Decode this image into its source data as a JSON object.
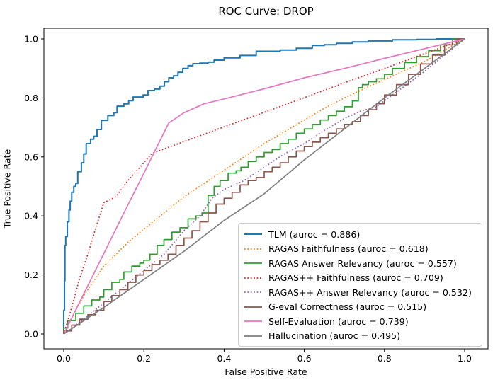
{
  "chart_data": {
    "type": "line",
    "title": "ROC Curve: DROP",
    "xlabel": "False Positive Rate",
    "ylabel": "True Positive Rate",
    "xlim": [
      0.0,
      1.0
    ],
    "ylim": [
      0.0,
      1.0
    ],
    "xticks": [
      "0.0",
      "0.2",
      "0.4",
      "0.6",
      "0.8",
      "1.0"
    ],
    "yticks": [
      "0.0",
      "0.2",
      "0.4",
      "0.6",
      "0.8",
      "1.0"
    ],
    "grid": false,
    "legend_position": "lower right",
    "legend": {
      "border_color": "#cccccc",
      "background": "#ffffff"
    },
    "axis_color": "#000000",
    "background": "#ffffff",
    "series": [
      {
        "name": "TLM",
        "auroc": 0.886,
        "label": "TLM (auroc = 0.886)",
        "color": "#1f77b4",
        "style": "solid",
        "render": "steps",
        "width": 2.0,
        "points": [
          [
            0,
            0
          ],
          [
            0.002,
            0.08
          ],
          [
            0.003,
            0.18
          ],
          [
            0.005,
            0.3
          ],
          [
            0.009,
            0.33
          ],
          [
            0.013,
            0.38
          ],
          [
            0.016,
            0.42
          ],
          [
            0.02,
            0.45
          ],
          [
            0.025,
            0.48
          ],
          [
            0.03,
            0.5
          ],
          [
            0.035,
            0.51
          ],
          [
            0.044,
            0.55
          ],
          [
            0.05,
            0.58
          ],
          [
            0.056,
            0.61
          ],
          [
            0.067,
            0.645
          ],
          [
            0.075,
            0.66
          ],
          [
            0.083,
            0.67
          ],
          [
            0.094,
            0.693
          ],
          [
            0.11,
            0.724
          ],
          [
            0.125,
            0.74
          ],
          [
            0.133,
            0.75
          ],
          [
            0.15,
            0.772
          ],
          [
            0.162,
            0.78
          ],
          [
            0.173,
            0.791
          ],
          [
            0.198,
            0.803
          ],
          [
            0.21,
            0.81
          ],
          [
            0.226,
            0.825
          ],
          [
            0.24,
            0.83
          ],
          [
            0.251,
            0.84
          ],
          [
            0.262,
            0.855
          ],
          [
            0.274,
            0.868
          ],
          [
            0.285,
            0.875
          ],
          [
            0.297,
            0.887
          ],
          [
            0.31,
            0.9
          ],
          [
            0.322,
            0.909
          ],
          [
            0.339,
            0.916
          ],
          [
            0.36,
            0.918
          ],
          [
            0.375,
            0.921
          ],
          [
            0.4,
            0.928
          ],
          [
            0.44,
            0.936
          ],
          [
            0.48,
            0.944
          ],
          [
            0.54,
            0.958
          ],
          [
            0.58,
            0.962
          ],
          [
            0.62,
            0.968
          ],
          [
            0.65,
            0.978
          ],
          [
            0.68,
            0.98
          ],
          [
            0.72,
            0.985
          ],
          [
            0.76,
            0.99
          ],
          [
            0.82,
            0.993
          ],
          [
            0.88,
            0.997
          ],
          [
            0.93,
            0.998
          ],
          [
            1,
            1
          ]
        ]
      },
      {
        "name": "RAGAS Faithfulness",
        "auroc": 0.618,
        "label": "RAGAS Faithfulness (auroc = 0.618)",
        "color": "#ff7f0e",
        "style": "dotted",
        "render": "linear",
        "width": 1.7,
        "points": [
          [
            0,
            0
          ],
          [
            0.01,
            0.03
          ],
          [
            0.03,
            0.08
          ],
          [
            0.05,
            0.13
          ],
          [
            0.07,
            0.17
          ],
          [
            0.1,
            0.23
          ],
          [
            0.13,
            0.27
          ],
          [
            0.16,
            0.31
          ],
          [
            0.2,
            0.355
          ],
          [
            0.25,
            0.41
          ],
          [
            0.3,
            0.465
          ],
          [
            0.35,
            0.51
          ],
          [
            0.4,
            0.555
          ],
          [
            0.45,
            0.6
          ],
          [
            0.5,
            0.645
          ],
          [
            0.55,
            0.685
          ],
          [
            0.6,
            0.725
          ],
          [
            0.65,
            0.765
          ],
          [
            0.7,
            0.8
          ],
          [
            0.75,
            0.832
          ],
          [
            0.8,
            0.862
          ],
          [
            0.85,
            0.893
          ],
          [
            0.9,
            0.923
          ],
          [
            0.95,
            0.962
          ],
          [
            1,
            1
          ]
        ]
      },
      {
        "name": "RAGAS Answer Relevancy",
        "auroc": 0.557,
        "label": "RAGAS Answer Relevancy (auroc = 0.557)",
        "color": "#2ca02c",
        "style": "solid",
        "render": "steps",
        "width": 1.7,
        "points": [
          [
            0,
            0
          ],
          [
            0.01,
            0.02
          ],
          [
            0.03,
            0.045
          ],
          [
            0.05,
            0.07
          ],
          [
            0.07,
            0.095
          ],
          [
            0.09,
            0.115
          ],
          [
            0.1,
            0.125
          ],
          [
            0.12,
            0.15
          ],
          [
            0.14,
            0.175
          ],
          [
            0.15,
            0.185
          ],
          [
            0.17,
            0.21
          ],
          [
            0.19,
            0.23
          ],
          [
            0.2,
            0.24
          ],
          [
            0.215,
            0.25
          ],
          [
            0.233,
            0.27
          ],
          [
            0.25,
            0.3
          ],
          [
            0.27,
            0.32
          ],
          [
            0.29,
            0.345
          ],
          [
            0.31,
            0.36
          ],
          [
            0.33,
            0.39
          ],
          [
            0.345,
            0.4
          ],
          [
            0.36,
            0.41
          ],
          [
            0.375,
            0.47
          ],
          [
            0.39,
            0.5
          ],
          [
            0.41,
            0.52
          ],
          [
            0.43,
            0.545
          ],
          [
            0.442,
            0.553
          ],
          [
            0.46,
            0.565
          ],
          [
            0.48,
            0.585
          ],
          [
            0.5,
            0.6
          ],
          [
            0.52,
            0.615
          ],
          [
            0.54,
            0.625
          ],
          [
            0.56,
            0.645
          ],
          [
            0.58,
            0.66
          ],
          [
            0.6,
            0.68
          ],
          [
            0.62,
            0.695
          ],
          [
            0.64,
            0.71
          ],
          [
            0.66,
            0.725
          ],
          [
            0.68,
            0.74
          ],
          [
            0.7,
            0.755
          ],
          [
            0.72,
            0.77
          ],
          [
            0.735,
            0.79
          ],
          [
            0.745,
            0.835
          ],
          [
            0.76,
            0.845
          ],
          [
            0.78,
            0.855
          ],
          [
            0.8,
            0.865
          ],
          [
            0.82,
            0.88
          ],
          [
            0.85,
            0.9
          ],
          [
            0.88,
            0.92
          ],
          [
            0.91,
            0.94
          ],
          [
            0.94,
            0.96
          ],
          [
            0.97,
            0.98
          ],
          [
            1,
            1
          ]
        ]
      },
      {
        "name": "RAGAS++ Faithfulness",
        "auroc": 0.709,
        "label": "RAGAS++ Faithfulness (auroc = 0.709)",
        "color": "#d62728",
        "style": "dotted",
        "render": "linear",
        "width": 1.7,
        "points": [
          [
            0,
            0
          ],
          [
            0.02,
            0.09
          ],
          [
            0.04,
            0.19
          ],
          [
            0.06,
            0.27
          ],
          [
            0.08,
            0.36
          ],
          [
            0.1,
            0.445
          ],
          [
            0.115,
            0.455
          ],
          [
            0.13,
            0.465
          ],
          [
            0.16,
            0.52
          ],
          [
            0.19,
            0.565
          ],
          [
            0.22,
            0.612
          ],
          [
            0.3,
            0.652
          ],
          [
            0.4,
            0.702
          ],
          [
            0.5,
            0.751
          ],
          [
            0.6,
            0.801
          ],
          [
            0.7,
            0.851
          ],
          [
            0.8,
            0.9
          ],
          [
            0.9,
            0.95
          ],
          [
            1,
            1
          ]
        ]
      },
      {
        "name": "RAGAS++ Answer Relevancy",
        "auroc": 0.532,
        "label": "RAGAS++ Answer Relevancy (auroc = 0.532)",
        "color": "#9467bd",
        "style": "dotted",
        "render": "linear",
        "width": 1.7,
        "points": [
          [
            0,
            0
          ],
          [
            0.05,
            0.05
          ],
          [
            0.1,
            0.105
          ],
          [
            0.15,
            0.16
          ],
          [
            0.2,
            0.215
          ],
          [
            0.25,
            0.27
          ],
          [
            0.3,
            0.35
          ],
          [
            0.34,
            0.4
          ],
          [
            0.37,
            0.46
          ],
          [
            0.4,
            0.49
          ],
          [
            0.45,
            0.52
          ],
          [
            0.5,
            0.565
          ],
          [
            0.55,
            0.61
          ],
          [
            0.6,
            0.645
          ],
          [
            0.65,
            0.69
          ],
          [
            0.7,
            0.73
          ],
          [
            0.74,
            0.755
          ],
          [
            0.78,
            0.77
          ],
          [
            0.82,
            0.81
          ],
          [
            0.86,
            0.85
          ],
          [
            0.9,
            0.89
          ],
          [
            0.95,
            0.945
          ],
          [
            1,
            1
          ]
        ]
      },
      {
        "name": "G-eval Correctness",
        "auroc": 0.515,
        "label": "G-eval Correctness (auroc = 0.515)",
        "color": "#8c564b",
        "style": "solid",
        "render": "steps",
        "width": 1.7,
        "points": [
          [
            0,
            0
          ],
          [
            0.02,
            0.01
          ],
          [
            0.04,
            0.03
          ],
          [
            0.06,
            0.05
          ],
          [
            0.08,
            0.065
          ],
          [
            0.1,
            0.08
          ],
          [
            0.12,
            0.11
          ],
          [
            0.14,
            0.13
          ],
          [
            0.16,
            0.15
          ],
          [
            0.18,
            0.175
          ],
          [
            0.2,
            0.2
          ],
          [
            0.22,
            0.215
          ],
          [
            0.24,
            0.235
          ],
          [
            0.26,
            0.25
          ],
          [
            0.28,
            0.27
          ],
          [
            0.3,
            0.3
          ],
          [
            0.32,
            0.325
          ],
          [
            0.34,
            0.35
          ],
          [
            0.36,
            0.38
          ],
          [
            0.38,
            0.41
          ],
          [
            0.4,
            0.44
          ],
          [
            0.42,
            0.46
          ],
          [
            0.44,
            0.48
          ],
          [
            0.46,
            0.505
          ],
          [
            0.48,
            0.52
          ],
          [
            0.5,
            0.53
          ],
          [
            0.52,
            0.55
          ],
          [
            0.54,
            0.565
          ],
          [
            0.56,
            0.58
          ],
          [
            0.58,
            0.6
          ],
          [
            0.6,
            0.62
          ],
          [
            0.62,
            0.635
          ],
          [
            0.64,
            0.65
          ],
          [
            0.66,
            0.665
          ],
          [
            0.68,
            0.68
          ],
          [
            0.7,
            0.695
          ],
          [
            0.72,
            0.71
          ],
          [
            0.74,
            0.72
          ],
          [
            0.76,
            0.74
          ],
          [
            0.78,
            0.76
          ],
          [
            0.8,
            0.78
          ],
          [
            0.83,
            0.81
          ],
          [
            0.86,
            0.845
          ],
          [
            0.89,
            0.88
          ],
          [
            0.92,
            0.915
          ],
          [
            0.95,
            0.945
          ],
          [
            0.98,
            0.98
          ],
          [
            1,
            1
          ]
        ]
      },
      {
        "name": "Self-Evaluation",
        "auroc": 0.739,
        "label": "Self-Evaluation (auroc = 0.739)",
        "color": "#e377c2",
        "style": "solid",
        "render": "linear",
        "width": 1.7,
        "points": [
          [
            0,
            0
          ],
          [
            0.05,
            0.136
          ],
          [
            0.1,
            0.273
          ],
          [
            0.15,
            0.41
          ],
          [
            0.2,
            0.545
          ],
          [
            0.24,
            0.655
          ],
          [
            0.262,
            0.715
          ],
          [
            0.3,
            0.75
          ],
          [
            0.35,
            0.78
          ],
          [
            0.41,
            0.8
          ],
          [
            0.5,
            0.831
          ],
          [
            0.6,
            0.868
          ],
          [
            0.7,
            0.9
          ],
          [
            0.8,
            0.934
          ],
          [
            0.9,
            0.967
          ],
          [
            1,
            1
          ]
        ]
      },
      {
        "name": "Hallucination",
        "auroc": 0.495,
        "label": "Hallucination (auroc = 0.495)",
        "color": "#7f7f7f",
        "style": "solid",
        "render": "linear",
        "width": 1.7,
        "points": [
          [
            0,
            0
          ],
          [
            0.1,
            0.09
          ],
          [
            0.2,
            0.185
          ],
          [
            0.3,
            0.28
          ],
          [
            0.4,
            0.385
          ],
          [
            0.5,
            0.475
          ],
          [
            0.6,
            0.59
          ],
          [
            0.7,
            0.695
          ],
          [
            0.8,
            0.8
          ],
          [
            0.9,
            0.9
          ],
          [
            1,
            1
          ]
        ]
      }
    ]
  }
}
